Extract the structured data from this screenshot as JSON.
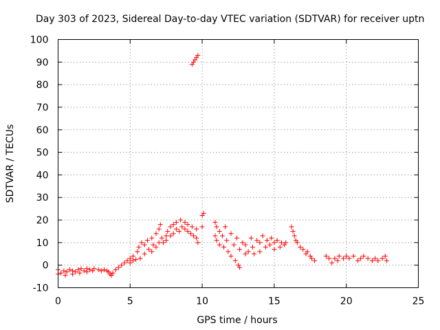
{
  "chart_data": {
    "type": "scatter",
    "title": "Day 303 of 2023, Sidereal Day-to-day VTEC variation (SDTVAR) for receiver uptn",
    "xlabel": "GPS time / hours",
    "ylabel": "SDTVAR / TECUs",
    "xlim": [
      0,
      25
    ],
    "ylim": [
      -10,
      100
    ],
    "xticks": [
      "0",
      "5",
      "10",
      "15",
      "20",
      "25"
    ],
    "yticks": [
      "-10",
      "0",
      "10",
      "20",
      "30",
      "40",
      "50",
      "60",
      "70",
      "80",
      "90",
      "100"
    ],
    "grid": true,
    "marker": "plus",
    "series": [
      {
        "name": "SDTVAR",
        "color": "#ff0000",
        "points": [
          [
            0.0,
            -4
          ],
          [
            0.0,
            -2
          ],
          [
            0.2,
            -3.5
          ],
          [
            0.4,
            -2.5
          ],
          [
            0.5,
            -4.5
          ],
          [
            0.6,
            -3
          ],
          [
            0.8,
            -2
          ],
          [
            1.0,
            -4
          ],
          [
            1.0,
            -2.5
          ],
          [
            1.2,
            -3
          ],
          [
            1.4,
            -2
          ],
          [
            1.5,
            -3.5
          ],
          [
            1.6,
            -1.5
          ],
          [
            1.8,
            -2.5
          ],
          [
            2.0,
            -1.5
          ],
          [
            2.0,
            -3
          ],
          [
            2.2,
            -2
          ],
          [
            2.4,
            -2.5
          ],
          [
            2.5,
            -1.5
          ],
          [
            2.8,
            -2
          ],
          [
            3.0,
            -2.5
          ],
          [
            3.2,
            -2
          ],
          [
            3.4,
            -2.5
          ],
          [
            3.5,
            -3
          ],
          [
            3.6,
            -4
          ],
          [
            3.7,
            -4.5
          ],
          [
            3.8,
            -3.5
          ],
          [
            4.0,
            -2
          ],
          [
            4.2,
            -1
          ],
          [
            4.4,
            0
          ],
          [
            4.6,
            1
          ],
          [
            4.8,
            2
          ],
          [
            5.0,
            3
          ],
          [
            5.0,
            1
          ],
          [
            5.2,
            4
          ],
          [
            5.2,
            2
          ],
          [
            5.4,
            2.5
          ],
          [
            5.5,
            6
          ],
          [
            5.6,
            8
          ],
          [
            5.7,
            3
          ],
          [
            5.8,
            10
          ],
          [
            6.0,
            5
          ],
          [
            6.0,
            9
          ],
          [
            6.2,
            11
          ],
          [
            6.3,
            7
          ],
          [
            6.5,
            6
          ],
          [
            6.5,
            12
          ],
          [
            6.6,
            9
          ],
          [
            6.8,
            14
          ],
          [
            6.8,
            8
          ],
          [
            7.0,
            10
          ],
          [
            7.0,
            16
          ],
          [
            7.1,
            18
          ],
          [
            7.2,
            12
          ],
          [
            7.3,
            10
          ],
          [
            7.5,
            13
          ],
          [
            7.5,
            11
          ],
          [
            7.6,
            15
          ],
          [
            7.8,
            13
          ],
          [
            7.8,
            17
          ],
          [
            8.0,
            14
          ],
          [
            8.0,
            18
          ],
          [
            8.2,
            16
          ],
          [
            8.2,
            19
          ],
          [
            8.4,
            15
          ],
          [
            8.5,
            20
          ],
          [
            8.6,
            17
          ],
          [
            8.8,
            16
          ],
          [
            8.8,
            19
          ],
          [
            9.0,
            15
          ],
          [
            9.0,
            18
          ],
          [
            9.2,
            14
          ],
          [
            9.3,
            17
          ],
          [
            9.4,
            13
          ],
          [
            9.6,
            12
          ],
          [
            9.6,
            16
          ],
          [
            9.7,
            10
          ],
          [
            9.3,
            89
          ],
          [
            9.4,
            90
          ],
          [
            9.5,
            91
          ],
          [
            9.6,
            92
          ],
          [
            9.7,
            93
          ],
          [
            10.0,
            17
          ],
          [
            10.0,
            22
          ],
          [
            10.1,
            23
          ],
          [
            10.9,
            19
          ],
          [
            10.9,
            13
          ],
          [
            11.0,
            17
          ],
          [
            11.0,
            11
          ],
          [
            11.2,
            15
          ],
          [
            11.2,
            9
          ],
          [
            11.4,
            13
          ],
          [
            11.5,
            8
          ],
          [
            11.6,
            17
          ],
          [
            11.7,
            11
          ],
          [
            11.8,
            6
          ],
          [
            12.0,
            14
          ],
          [
            12.0,
            4
          ],
          [
            12.2,
            9
          ],
          [
            12.3,
            2
          ],
          [
            12.4,
            12
          ],
          [
            12.5,
            0
          ],
          [
            12.6,
            7
          ],
          [
            12.6,
            -1
          ],
          [
            12.8,
            10
          ],
          [
            13.0,
            5
          ],
          [
            13.0,
            9
          ],
          [
            13.2,
            6
          ],
          [
            13.4,
            12
          ],
          [
            13.5,
            8
          ],
          [
            13.6,
            5
          ],
          [
            13.8,
            11
          ],
          [
            14.0,
            6
          ],
          [
            14.0,
            10
          ],
          [
            14.2,
            13
          ],
          [
            14.4,
            8
          ],
          [
            14.5,
            11
          ],
          [
            14.7,
            9
          ],
          [
            14.8,
            12
          ],
          [
            15.0,
            10
          ],
          [
            15.0,
            7
          ],
          [
            15.2,
            11
          ],
          [
            15.4,
            8
          ],
          [
            15.5,
            10
          ],
          [
            15.7,
            9
          ],
          [
            15.8,
            10
          ],
          [
            16.2,
            17
          ],
          [
            16.3,
            15
          ],
          [
            16.4,
            13
          ],
          [
            16.5,
            11
          ],
          [
            16.6,
            10
          ],
          [
            16.8,
            8
          ],
          [
            17.0,
            7
          ],
          [
            17.2,
            5
          ],
          [
            17.3,
            6
          ],
          [
            17.5,
            4
          ],
          [
            17.6,
            3
          ],
          [
            17.8,
            2
          ],
          [
            18.6,
            4
          ],
          [
            18.8,
            3
          ],
          [
            19.0,
            1
          ],
          [
            19.2,
            3
          ],
          [
            19.4,
            2
          ],
          [
            19.5,
            4
          ],
          [
            19.8,
            3
          ],
          [
            20.0,
            4
          ],
          [
            20.2,
            3
          ],
          [
            20.5,
            4
          ],
          [
            20.8,
            2
          ],
          [
            21.0,
            3
          ],
          [
            21.2,
            4
          ],
          [
            21.5,
            3
          ],
          [
            21.8,
            2
          ],
          [
            22.0,
            3
          ],
          [
            22.2,
            2
          ],
          [
            22.5,
            3
          ],
          [
            22.7,
            4
          ],
          [
            22.8,
            2
          ]
        ]
      }
    ]
  }
}
